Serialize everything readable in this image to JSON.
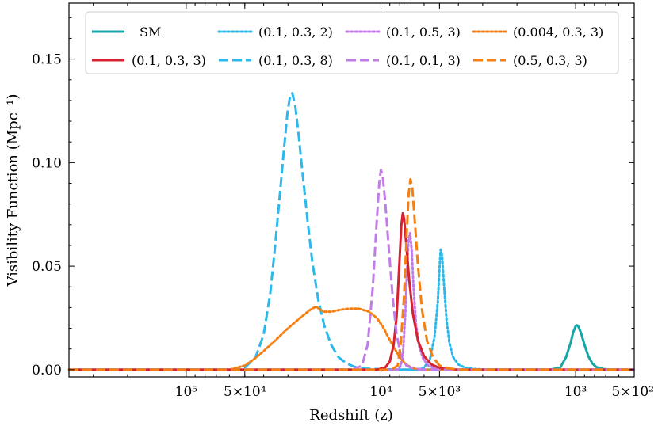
{
  "chart_data": {
    "type": "line",
    "title": "",
    "xlabel": "Redshift (z)",
    "ylabel": "Visibility Function (Mpc⁻¹)",
    "x_scale": "log",
    "x_reversed": true,
    "xlim": [
      400000,
      500
    ],
    "ylim": [
      -0.0035,
      0.177
    ],
    "x_ticks": [
      {
        "value": 100000,
        "label": "10⁵"
      },
      {
        "value": 50000,
        "label": "5×10⁴"
      },
      {
        "value": 10000,
        "label": "10⁴"
      },
      {
        "value": 5000,
        "label": "5×10³"
      },
      {
        "value": 1000,
        "label": "10³"
      },
      {
        "value": 500,
        "label": "5×10²"
      }
    ],
    "y_ticks": [
      {
        "value": 0.0,
        "label": "0.00"
      },
      {
        "value": 0.05,
        "label": "0.05"
      },
      {
        "value": 0.1,
        "label": "0.10"
      },
      {
        "value": 0.15,
        "label": "0.15"
      }
    ],
    "grid": false,
    "legend_position": "top",
    "legend_columns": 4,
    "series": [
      {
        "name": "SM",
        "color": "#17a6a6",
        "dash": "solid",
        "points": [
          [
            2000,
            0
          ],
          [
            1350,
            0
          ],
          [
            1200,
            0.001
          ],
          [
            1120,
            0.006
          ],
          [
            1060,
            0.013
          ],
          [
            1030,
            0.018
          ],
          [
            1000,
            0.021
          ],
          [
            985,
            0.0215
          ],
          [
            970,
            0.021
          ],
          [
            940,
            0.018
          ],
          [
            900,
            0.012
          ],
          [
            860,
            0.0065
          ],
          [
            820,
            0.003
          ],
          [
            780,
            0.0012
          ],
          [
            720,
            0.0003
          ],
          [
            650,
            0
          ],
          [
            500,
            0
          ]
        ]
      },
      {
        "name": "(0.1, 0.3, 2)",
        "color": "#2cb8ea",
        "dash": "dotted",
        "points": [
          [
            6500,
            0
          ],
          [
            6000,
            0.001
          ],
          [
            5600,
            0.005
          ],
          [
            5300,
            0.016
          ],
          [
            5100,
            0.033
          ],
          [
            5000,
            0.049
          ],
          [
            4930,
            0.058
          ],
          [
            4850,
            0.055
          ],
          [
            4750,
            0.042
          ],
          [
            4600,
            0.024
          ],
          [
            4450,
            0.013
          ],
          [
            4250,
            0.006
          ],
          [
            4000,
            0.0025
          ],
          [
            3700,
            0.001
          ],
          [
            3300,
            0.0003
          ],
          [
            2800,
            0
          ]
        ]
      },
      {
        "name": "(0.1, 0.3, 8)",
        "color": "#2cb8ea",
        "dash": "dashed",
        "points": [
          [
            60000,
            0
          ],
          [
            50000,
            0.001
          ],
          [
            44000,
            0.006
          ],
          [
            40000,
            0.017
          ],
          [
            37000,
            0.037
          ],
          [
            35000,
            0.059
          ],
          [
            33000,
            0.085
          ],
          [
            31500,
            0.106
          ],
          [
            30200,
            0.124
          ],
          [
            29200,
            0.133
          ],
          [
            28500,
            0.1335
          ],
          [
            27500,
            0.127
          ],
          [
            26500,
            0.114
          ],
          [
            25200,
            0.094
          ],
          [
            23800,
            0.072
          ],
          [
            22500,
            0.052
          ],
          [
            21000,
            0.034
          ],
          [
            19500,
            0.021
          ],
          [
            18000,
            0.012
          ],
          [
            16500,
            0.006
          ],
          [
            15000,
            0.003
          ],
          [
            13500,
            0.0012
          ],
          [
            12000,
            0.0005
          ],
          [
            10000,
            0.0002
          ],
          [
            8000,
            0
          ]
        ]
      },
      {
        "name": "(0.1, 0.5, 3)",
        "color": "#c27ce8",
        "dash": "dotted",
        "points": [
          [
            8200,
            0
          ],
          [
            7900,
            0.002
          ],
          [
            7700,
            0.008
          ],
          [
            7500,
            0.026
          ],
          [
            7350,
            0.047
          ],
          [
            7200,
            0.063
          ],
          [
            7080,
            0.066
          ],
          [
            6950,
            0.058
          ],
          [
            6800,
            0.04
          ],
          [
            6600,
            0.022
          ],
          [
            6350,
            0.011
          ],
          [
            6050,
            0.005
          ],
          [
            5700,
            0.002
          ],
          [
            5300,
            0.0007
          ],
          [
            4800,
            0
          ]
        ]
      },
      {
        "name": "(0.004, 0.3, 3)",
        "color": "#f57f12",
        "dash": "dotted",
        "points": [
          [
            60000,
            0
          ],
          [
            50000,
            0.002
          ],
          [
            45000,
            0.005
          ],
          [
            40000,
            0.009
          ],
          [
            35000,
            0.014
          ],
          [
            30000,
            0.02
          ],
          [
            26000,
            0.025
          ],
          [
            23000,
            0.029
          ],
          [
            21500,
            0.0305
          ],
          [
            20500,
            0.029
          ],
          [
            19500,
            0.028
          ],
          [
            18000,
            0.028
          ],
          [
            16000,
            0.029
          ],
          [
            14500,
            0.0295
          ],
          [
            13000,
            0.0295
          ],
          [
            11500,
            0.028
          ],
          [
            10500,
            0.025
          ],
          [
            9800,
            0.021
          ],
          [
            9200,
            0.016
          ],
          [
            8600,
            0.011
          ],
          [
            8000,
            0.006
          ],
          [
            7500,
            0.003
          ],
          [
            7000,
            0.001
          ],
          [
            6500,
            0.0003
          ],
          [
            6000,
            0
          ]
        ]
      },
      {
        "name": "(0.1, 0.3, 3)",
        "color": "#d6222f",
        "dash": "solid",
        "points": [
          [
            10500,
            0
          ],
          [
            9500,
            0.001
          ],
          [
            9000,
            0.004
          ],
          [
            8600,
            0.012
          ],
          [
            8300,
            0.026
          ],
          [
            8050,
            0.05
          ],
          [
            7850,
            0.07
          ],
          [
            7720,
            0.0755
          ],
          [
            7600,
            0.073
          ],
          [
            7400,
            0.06
          ],
          [
            7150,
            0.043
          ],
          [
            6850,
            0.027
          ],
          [
            6450,
            0.014
          ],
          [
            6000,
            0.0065
          ],
          [
            5500,
            0.0025
          ],
          [
            5000,
            0.0008
          ],
          [
            4300,
            0
          ]
        ]
      },
      {
        "name": "(0.1, 0.1, 3)",
        "color": "#c27ce8",
        "dash": "dashed",
        "points": [
          [
            14000,
            0
          ],
          [
            12500,
            0.002
          ],
          [
            11700,
            0.012
          ],
          [
            11000,
            0.04
          ],
          [
            10500,
            0.072
          ],
          [
            10200,
            0.09
          ],
          [
            10000,
            0.0965
          ],
          [
            9800,
            0.094
          ],
          [
            9500,
            0.081
          ],
          [
            9100,
            0.058
          ],
          [
            8700,
            0.035
          ],
          [
            8300,
            0.017
          ],
          [
            7900,
            0.007
          ],
          [
            7400,
            0.002
          ],
          [
            6800,
            0.0005
          ],
          [
            6000,
            0
          ]
        ]
      },
      {
        "name": "(0.5, 0.3, 3)",
        "color": "#f57f12",
        "dash": "dashed",
        "points": [
          [
            8800,
            0
          ],
          [
            8200,
            0.002
          ],
          [
            7900,
            0.013
          ],
          [
            7600,
            0.036
          ],
          [
            7400,
            0.062
          ],
          [
            7200,
            0.085
          ],
          [
            7050,
            0.092
          ],
          [
            6900,
            0.088
          ],
          [
            6700,
            0.072
          ],
          [
            6450,
            0.05
          ],
          [
            6150,
            0.029
          ],
          [
            5800,
            0.014
          ],
          [
            5400,
            0.006
          ],
          [
            5000,
            0.002
          ],
          [
            4500,
            0.0006
          ],
          [
            4000,
            0
          ]
        ]
      }
    ]
  }
}
